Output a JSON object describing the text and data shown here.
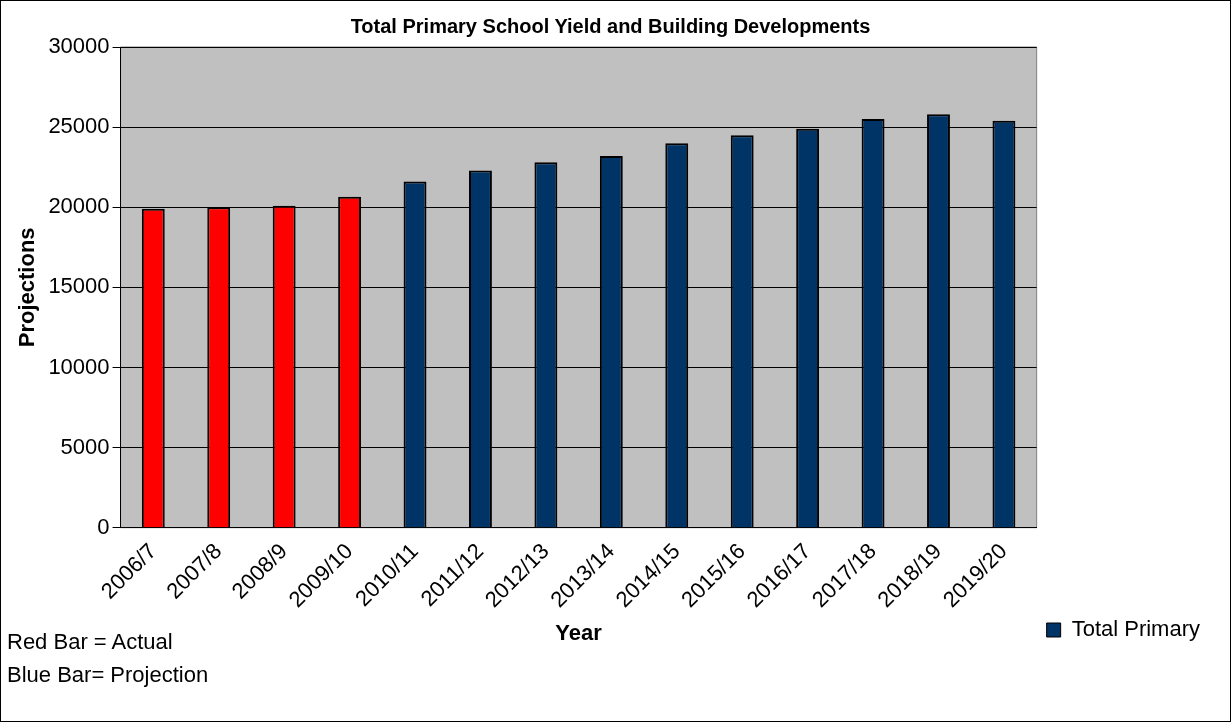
{
  "chart_data": {
    "type": "bar",
    "title": "Total Primary School Yield and Building Developments",
    "xlabel": "Year",
    "ylabel": "Projections",
    "categories": [
      "2006/7",
      "2007/8",
      "2008/9",
      "2009/10",
      "2010/11",
      "2011/12",
      "2012/13",
      "2013/14",
      "2014/15",
      "2015/16",
      "2016/17",
      "2017/18",
      "2018/19",
      "2019/20"
    ],
    "series": [
      {
        "name": "Total Primary",
        "color": "#003366",
        "colors": [
          "#ff0000",
          "#ff0000",
          "#ff0000",
          "#ff0000",
          "#003366",
          "#003366",
          "#003366",
          "#003366",
          "#003366",
          "#003366",
          "#003366",
          "#003366",
          "#003366",
          "#003366"
        ],
        "values": [
          19900,
          20000,
          20100,
          20650,
          21600,
          22300,
          22800,
          23200,
          24000,
          24500,
          24900,
          25500,
          25800,
          25400
        ]
      }
    ],
    "ylim": [
      0,
      30000
    ],
    "yticks": [
      0,
      5000,
      10000,
      15000,
      20000,
      25000,
      30000
    ],
    "grid": "y",
    "legend": "bottom right",
    "annotations": [
      "Red Bar = Actual",
      "Blue Bar= Projection"
    ]
  }
}
